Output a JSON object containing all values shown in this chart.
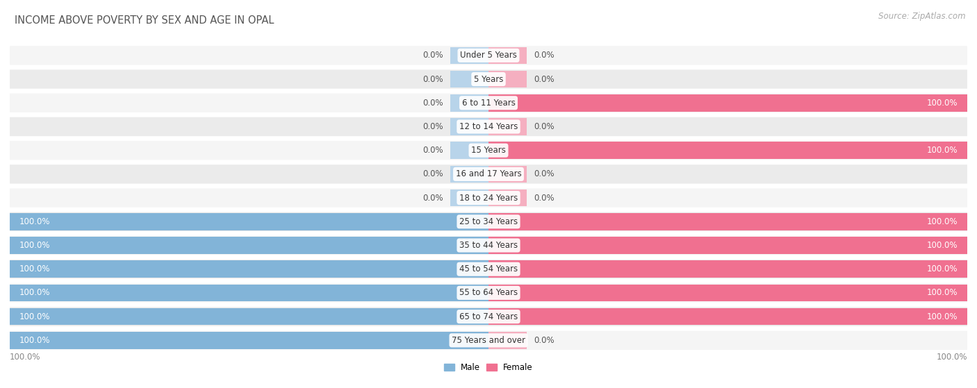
{
  "title": "INCOME ABOVE POVERTY BY SEX AND AGE IN OPAL",
  "source": "Source: ZipAtlas.com",
  "categories": [
    "Under 5 Years",
    "5 Years",
    "6 to 11 Years",
    "12 to 14 Years",
    "15 Years",
    "16 and 17 Years",
    "18 to 24 Years",
    "25 to 34 Years",
    "35 to 44 Years",
    "45 to 54 Years",
    "55 to 64 Years",
    "65 to 74 Years",
    "75 Years and over"
  ],
  "male_values": [
    0.0,
    0.0,
    0.0,
    0.0,
    0.0,
    0.0,
    0.0,
    100.0,
    100.0,
    100.0,
    100.0,
    100.0,
    100.0
  ],
  "female_values": [
    0.0,
    0.0,
    100.0,
    0.0,
    100.0,
    0.0,
    0.0,
    100.0,
    100.0,
    100.0,
    100.0,
    100.0,
    0.0
  ],
  "male_color": "#82b4d8",
  "female_color": "#f07090",
  "male_label": "Male",
  "female_label": "Female",
  "male_zero_color": "#b8d4ea",
  "female_zero_color": "#f5afc0",
  "bar_bg_color": "#e8e8e8",
  "row_bg_even": "#f5f5f5",
  "row_bg_odd": "#ebebeb",
  "title_fontsize": 10.5,
  "source_fontsize": 8.5,
  "label_fontsize": 8.5,
  "value_fontsize": 8.5,
  "zero_bar_width": 8,
  "xlim": 100
}
